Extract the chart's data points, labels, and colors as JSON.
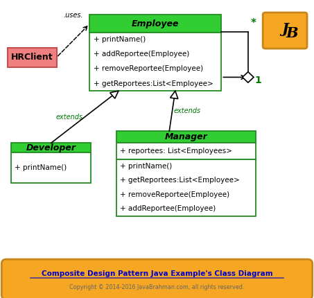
{
  "bg_color": "#ffffff",
  "title_text": "Composite Design Pattern Java Example's Class Diagram",
  "copyright_text": "Copyright © 2014-2016 JavaBrahman.com, all rights reserved.",
  "footer_bg": "#f5a623",
  "footer_border": "#c8851a",
  "green_header_color": "#32cd32",
  "green_border_color": "#228B22",
  "extends_color": "#007700",
  "logo_bg": "#f5a623",
  "logo_border": "#c8851a",
  "hrclient_bg": "#f08080",
  "hrclient_border": "#c05050",
  "employee_methods": [
    "+ printName()",
    "+ addReportee(Employee)",
    "+ removeReportee(Employee)",
    "+ getReportees:List<Employee>"
  ],
  "developer_methods": [
    "+ printName()"
  ],
  "manager_attributes": [
    "+ reportees: List<Employees>"
  ],
  "manager_methods": [
    "+ printName()",
    "+ getReportees:List<Employee>",
    "+ removeReportee(Employee)",
    "+ addReportee(Employee)"
  ]
}
